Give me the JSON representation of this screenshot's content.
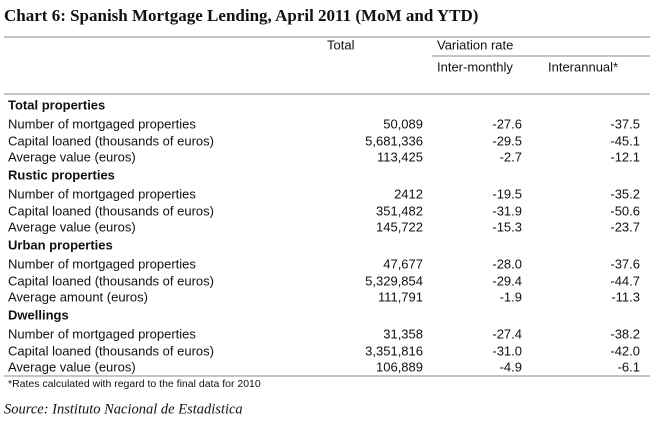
{
  "title": "Chart 6:  Spanish Mortgage Lending, April 2011 (MoM and YTD)",
  "header": {
    "total": "Total",
    "variation_rate": "Variation rate",
    "inter_monthly": "Inter-monthly",
    "interannual": "Interannual*"
  },
  "sections": [
    {
      "title": "Total properties",
      "rows": [
        [
          "Number of mortgaged properties",
          "50,089",
          "-27.6",
          "-37.5"
        ],
        [
          "Capital loaned (thousands of euros)",
          "5,681,336",
          "-29.5",
          "-45.1"
        ],
        [
          "Average value (euros)",
          "113,425",
          "-2.7",
          "-12.1"
        ]
      ]
    },
    {
      "title": "Rustic properties",
      "rows": [
        [
          "Number of mortgaged properties",
          "2412",
          "-19.5",
          "-35.2"
        ],
        [
          "Capital loaned (thousands of euros)",
          "351,482",
          "-31.9",
          "-50.6"
        ],
        [
          "Average value (euros)",
          "145,722",
          "-15.3",
          "-23.7"
        ]
      ]
    },
    {
      "title": "Urban properties",
      "rows": [
        [
          "Number of mortgaged properties",
          "47,677",
          "-28.0",
          "-37.6"
        ],
        [
          "Capital loaned (thousands of euros)",
          "5,329,854",
          "-29.4",
          "-44.7"
        ],
        [
          "Average amount (euros)",
          "111,791",
          "-1.9",
          "-11.3"
        ]
      ]
    },
    {
      "title": "Dwellings",
      "rows": [
        [
          "Number of mortgaged properties",
          "31,358",
          "-27.4",
          "-38.2"
        ],
        [
          "Capital loaned (thousands of euros)",
          "3,351,816",
          "-31.0",
          "-42.0"
        ],
        [
          "Average value (euros)",
          "106,889",
          "-4.9",
          "-6.1"
        ]
      ]
    }
  ],
  "footnote": "*Rates calculated with regard to the final data for 2010",
  "source": "Source: Instituto Nacional de Estadistica"
}
